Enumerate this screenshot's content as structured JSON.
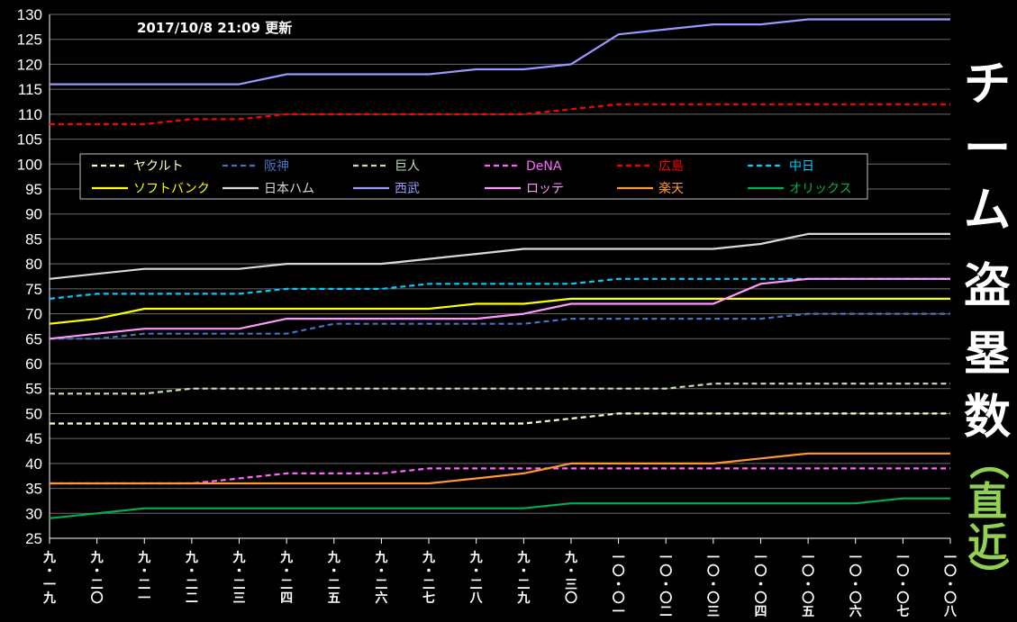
{
  "updated": "2017/10/8  21:09 更新",
  "side_title": {
    "main": [
      "チ",
      "ー",
      "ム",
      "盗",
      "塁",
      "数"
    ],
    "sub": [
      "（",
      "直",
      "近",
      "）"
    ],
    "sub_color": "#92d050"
  },
  "chart_data": {
    "type": "line",
    "title": "チーム盗塁数（直近）",
    "ylim": [
      25,
      130
    ],
    "yticks": [
      25,
      30,
      35,
      40,
      45,
      50,
      55,
      60,
      65,
      70,
      75,
      80,
      85,
      90,
      95,
      100,
      105,
      110,
      115,
      120,
      125,
      130
    ],
    "grid": true,
    "legend_position": "top-left",
    "categories": [
      "九・一九",
      "九・二〇",
      "九・二一",
      "九・二二",
      "九・二三",
      "九・二四",
      "九・二五",
      "九・二六",
      "九・二七",
      "九・二八",
      "九・二九",
      "九・三〇",
      "一〇・〇一",
      "一〇・〇二",
      "一〇・〇三",
      "一〇・〇四",
      "一〇・〇五",
      "一〇・〇六",
      "一〇・〇七",
      "一〇・〇八"
    ],
    "series": [
      {
        "name": "ヤクルト",
        "color": "#ffffcc",
        "dash": true,
        "values": [
          48,
          48,
          48,
          48,
          48,
          48,
          48,
          48,
          48,
          48,
          48,
          49,
          50,
          50,
          50,
          50,
          50,
          50,
          50,
          50
        ]
      },
      {
        "name": "阪神",
        "color": "#4472c4",
        "dash": true,
        "values": [
          65,
          65,
          66,
          66,
          66,
          66,
          68,
          68,
          68,
          68,
          68,
          69,
          69,
          69,
          69,
          69,
          70,
          70,
          70,
          70
        ]
      },
      {
        "name": "巨人",
        "color": "#c5e0b4",
        "dash": true,
        "values": [
          54,
          54,
          54,
          55,
          55,
          55,
          55,
          55,
          55,
          55,
          55,
          55,
          55,
          55,
          56,
          56,
          56,
          56,
          56,
          56
        ]
      },
      {
        "name": "DeNA",
        "color": "#ff66ff",
        "dash": true,
        "values": [
          36,
          36,
          36,
          36,
          37,
          38,
          38,
          38,
          39,
          39,
          39,
          39,
          39,
          39,
          39,
          39,
          39,
          39,
          39,
          39
        ]
      },
      {
        "name": "広島",
        "color": "#ff0000",
        "dash": true,
        "values": [
          108,
          108,
          108,
          109,
          109,
          110,
          110,
          110,
          110,
          110,
          110,
          111,
          112,
          112,
          112,
          112,
          112,
          112,
          112,
          112
        ]
      },
      {
        "name": "中日",
        "color": "#00ccff",
        "dash": true,
        "values": [
          73,
          74,
          74,
          74,
          74,
          75,
          75,
          75,
          76,
          76,
          76,
          76,
          77,
          77,
          77,
          77,
          77,
          77,
          77,
          77
        ]
      },
      {
        "name": "ソフトバンク",
        "color": "#ffff00",
        "dash": false,
        "values": [
          68,
          69,
          71,
          71,
          71,
          71,
          71,
          71,
          71,
          72,
          72,
          73,
          73,
          73,
          73,
          73,
          73,
          73,
          73,
          73
        ]
      },
      {
        "name": "日本ハム",
        "color": "#d9d9d9",
        "dash": false,
        "values": [
          77,
          78,
          79,
          79,
          79,
          80,
          80,
          80,
          81,
          82,
          83,
          83,
          83,
          83,
          83,
          84,
          86,
          86,
          86,
          86
        ]
      },
      {
        "name": "西武",
        "color": "#9999ff",
        "dash": false,
        "values": [
          116,
          116,
          116,
          116,
          116,
          118,
          118,
          118,
          118,
          119,
          119,
          120,
          126,
          127,
          128,
          128,
          129,
          129,
          129,
          129
        ]
      },
      {
        "name": "ロッテ",
        "color": "#ff99ff",
        "dash": false,
        "values": [
          65,
          66,
          67,
          67,
          67,
          69,
          69,
          69,
          69,
          69,
          70,
          72,
          72,
          72,
          72,
          76,
          77,
          77,
          77,
          77
        ]
      },
      {
        "name": "楽天",
        "color": "#ff9933",
        "dash": false,
        "values": [
          36,
          36,
          36,
          36,
          36,
          36,
          36,
          36,
          36,
          37,
          38,
          40,
          40,
          40,
          40,
          41,
          42,
          42,
          42,
          42
        ]
      },
      {
        "name": "オリックス",
        "color": "#00b050",
        "dash": false,
        "values": [
          29,
          30,
          31,
          31,
          31,
          31,
          31,
          31,
          31,
          31,
          31,
          32,
          32,
          32,
          32,
          32,
          32,
          32,
          33,
          33
        ]
      }
    ]
  }
}
